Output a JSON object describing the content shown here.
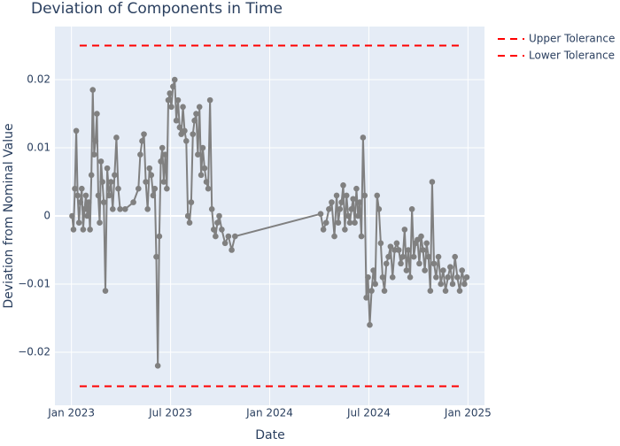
{
  "chart_data": {
    "type": "line",
    "title": "Deviation of Components in Time",
    "x_label": "Date",
    "y_label": "Deviation from Nominal Value",
    "xlim": [
      "2022-12",
      "2025-02"
    ],
    "xticks": [
      {
        "value": "2023-01",
        "label": "Jan 2023"
      },
      {
        "value": "2023-07",
        "label": "Jul 2023"
      },
      {
        "value": "2024-01",
        "label": "Jan 2024"
      },
      {
        "value": "2024-07",
        "label": "Jul 2024"
      },
      {
        "value": "2025-01",
        "label": "Jan 2025"
      }
    ],
    "ylim": [
      -0.0278,
      0.0278
    ],
    "yticks": [
      {
        "value": -0.02,
        "label": "−0.02"
      },
      {
        "value": -0.01,
        "label": "−0.01"
      },
      0,
      0.01,
      0.02
    ],
    "grid": true,
    "legend": "top-right",
    "series": [
      {
        "color": "#808080",
        "markers": true,
        "x": [
          "2023-01",
          "2023-01",
          "2023-01",
          "2023-01",
          "2023-01",
          "2023-01",
          "2023-01",
          "2023-01",
          "2023-01",
          "2023-01",
          "2023-01",
          "2023-01",
          "2023-02",
          "2023-02",
          "2023-02",
          "2023-02",
          "2023-02",
          "2023-02",
          "2023-02",
          "2023-02",
          "2023-02",
          "2023-02",
          "2023-02",
          "2023-02",
          "2023-03",
          "2023-03",
          "2023-03",
          "2023-03",
          "2023-03",
          "2023-03",
          "2023-03",
          "2023-03",
          "2023-03",
          "2023-04",
          "2023-04",
          "2023-05",
          "2023-05",
          "2023-05",
          "2023-05",
          "2023-05",
          "2023-05",
          "2023-05",
          "2023-05",
          "2023-05",
          "2023-06",
          "2023-06",
          "2023-06",
          "2023-06",
          "2023-06",
          "2023-06",
          "2023-06",
          "2023-06",
          "2023-06",
          "2023-06",
          "2023-06",
          "2023-07",
          "2023-07",
          "2023-07",
          "2023-07",
          "2023-07",
          "2023-07",
          "2023-07",
          "2023-07",
          "2023-07",
          "2023-07",
          "2023-08",
          "2023-08",
          "2023-08",
          "2023-08",
          "2023-08",
          "2023-08",
          "2023-08",
          "2023-08",
          "2023-08",
          "2023-08",
          "2023-09",
          "2023-09",
          "2023-09",
          "2023-09",
          "2023-09",
          "2023-09",
          "2023-09",
          "2023-09",
          "2023-09",
          "2023-10",
          "2023-10",
          "2023-10",
          "2023-10",
          "2023-10",
          "2024-04",
          "2024-04",
          "2024-04",
          "2024-04",
          "2024-04",
          "2024-04",
          "2024-05",
          "2024-05",
          "2024-05",
          "2024-05",
          "2024-05",
          "2024-05",
          "2024-05",
          "2024-05",
          "2024-05",
          "2024-05",
          "2024-06",
          "2024-06",
          "2024-06",
          "2024-06",
          "2024-06",
          "2024-06",
          "2024-06",
          "2024-06",
          "2024-06",
          "2024-06",
          "2024-07",
          "2024-07",
          "2024-07",
          "2024-07",
          "2024-07",
          "2024-07",
          "2024-07",
          "2024-07",
          "2024-07",
          "2024-08",
          "2024-08",
          "2024-08",
          "2024-08",
          "2024-08",
          "2024-08",
          "2024-08",
          "2024-08",
          "2024-09",
          "2024-09",
          "2024-09",
          "2024-09",
          "2024-09",
          "2024-09",
          "2024-09",
          "2024-09",
          "2024-09",
          "2024-10",
          "2024-10",
          "2024-10",
          "2024-10",
          "2024-10",
          "2024-10",
          "2024-10",
          "2024-10",
          "2024-10",
          "2024-11",
          "2024-11",
          "2024-11",
          "2024-11",
          "2024-11",
          "2024-11",
          "2024-11",
          "2024-12",
          "2024-12",
          "2024-12",
          "2024-12",
          "2024-12",
          "2024-12",
          "2024-12"
        ],
        "values": [
          0,
          -0.002,
          0.004,
          0.0125,
          0.003,
          -0.001,
          0.002,
          0.004,
          -0.002,
          0.001,
          0.003,
          0,
          0.002,
          -0.002,
          0.006,
          0.0185,
          0.009,
          0.011,
          0.015,
          0.003,
          -0.001,
          0.008,
          0.005,
          0.002,
          -0.011,
          0.007,
          0.003,
          0.005,
          0.001,
          0.006,
          0.0115,
          0.004,
          0.001,
          0.001,
          0.002,
          0.004,
          0.009,
          0.011,
          0.012,
          0.005,
          0.001,
          0.007,
          0.006,
          0.003,
          0.004,
          -0.006,
          -0.022,
          -0.003,
          0.008,
          0.01,
          0.005,
          0.009,
          0.004,
          0.017,
          0.018,
          0.016,
          0.019,
          0.02,
          0.014,
          0.017,
          0.013,
          0.012,
          0.016,
          0.0125,
          0.011,
          0,
          -0.001,
          0.002,
          0.012,
          0.014,
          0.015,
          0.009,
          0.016,
          0.006,
          0.01,
          0.007,
          0.005,
          0.004,
          0.017,
          0.001,
          -0.002,
          -0.003,
          -0.001,
          0,
          -0.002,
          -0.004,
          -0.003,
          -0.005,
          -0.003,
          0.0003,
          -0.002,
          -0.001,
          0.001,
          0.002,
          -0.003,
          0.003,
          -0.001,
          0.001,
          0.002,
          0.0045,
          -0.002,
          0.003,
          0,
          -0.001,
          0.001,
          0.0025,
          -0.001,
          0.004,
          0,
          0.002,
          -0.003,
          0.0115,
          0.003,
          -0.012,
          -0.009,
          -0.016,
          -0.011,
          -0.008,
          -0.01,
          0.003,
          0.001,
          -0.004,
          -0.009,
          -0.011,
          -0.007,
          -0.006,
          -0.0045,
          -0.009,
          -0.005,
          -0.004,
          -0.005,
          -0.007,
          -0.006,
          -0.002,
          -0.008,
          -0.005,
          -0.009,
          0.001,
          -0.006,
          -0.004,
          -0.0035,
          -0.007,
          -0.003,
          -0.005,
          -0.008,
          -0.004,
          -0.006,
          -0.011,
          0.005,
          -0.007,
          -0.009,
          -0.006,
          -0.01,
          -0.008,
          -0.011,
          -0.009,
          -0.0075,
          -0.01,
          -0.006,
          -0.009,
          -0.011,
          -0.008,
          -0.01,
          -0.009
        ]
      },
      {
        "name": "Upper Tolerance",
        "color": "red",
        "dash": true,
        "x": [
          "2023-01",
          "2024-12"
        ],
        "values": [
          0.025,
          0.025
        ]
      },
      {
        "name": "Lower Tolerance",
        "color": "red",
        "dash": true,
        "x": [
          "2023-01",
          "2024-12"
        ],
        "values": [
          -0.025,
          -0.025
        ]
      }
    ]
  }
}
